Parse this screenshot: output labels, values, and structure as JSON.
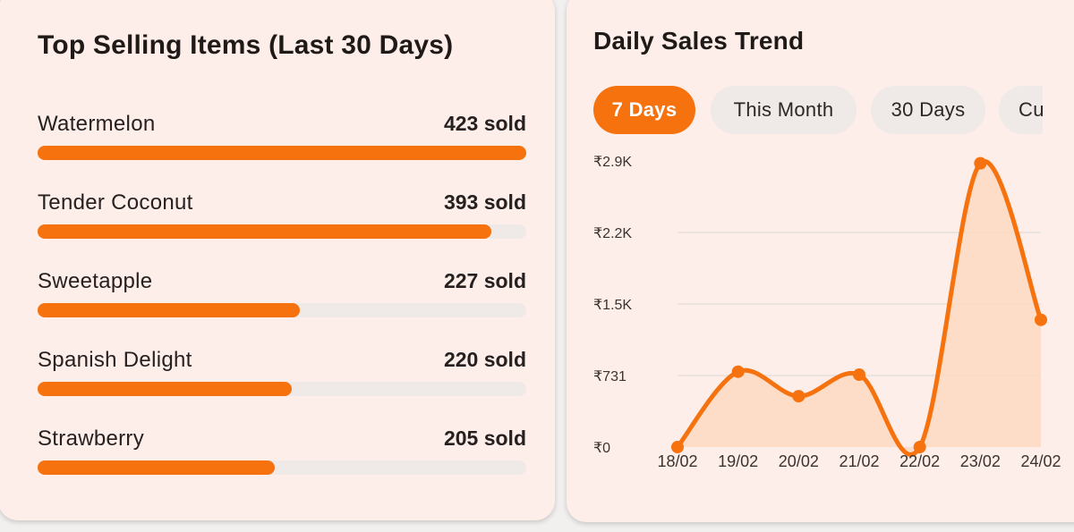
{
  "left_card": {
    "title": "Top Selling Items (Last 30 Days)",
    "max_count": 423,
    "items": [
      {
        "name": "Watermelon",
        "sold_label": "423 sold",
        "count": 423
      },
      {
        "name": "Tender Coconut",
        "sold_label": "393 sold",
        "count": 393
      },
      {
        "name": "Sweetapple",
        "sold_label": "227 sold",
        "count": 227
      },
      {
        "name": "Spanish Delight",
        "sold_label": "220 sold",
        "count": 220
      },
      {
        "name": "Strawberry",
        "sold_label": "205 sold",
        "count": 205
      }
    ]
  },
  "right_card": {
    "title": "Daily Sales Trend",
    "tabs": [
      {
        "label": "7 Days",
        "active": true
      },
      {
        "label": "This Month",
        "active": false
      },
      {
        "label": "30 Days",
        "active": false
      },
      {
        "label": "Cu",
        "active": false
      }
    ]
  },
  "colors": {
    "accent": "#f5720f",
    "area_fill": "#fdd9c1",
    "card_bg": "#fdeee9",
    "track": "#efe9e7",
    "grid": "#dcd6d3"
  },
  "chart_data": {
    "type": "area",
    "title": "Daily Sales Trend",
    "xlabel": "",
    "ylabel": "",
    "categories": [
      "18/02",
      "19/02",
      "20/02",
      "21/02",
      "22/02",
      "23/02",
      "24/02"
    ],
    "values": [
      0,
      770,
      520,
      740,
      0,
      2900,
      1300
    ],
    "y_ticks": [
      0,
      731,
      1462,
      2193,
      2924
    ],
    "y_tick_labels": [
      "₹0",
      "₹731",
      "₹1.5K",
      "₹2.2K",
      "₹2.9K"
    ],
    "ylim": [
      0,
      2924
    ],
    "grid": true,
    "smooth": true
  }
}
